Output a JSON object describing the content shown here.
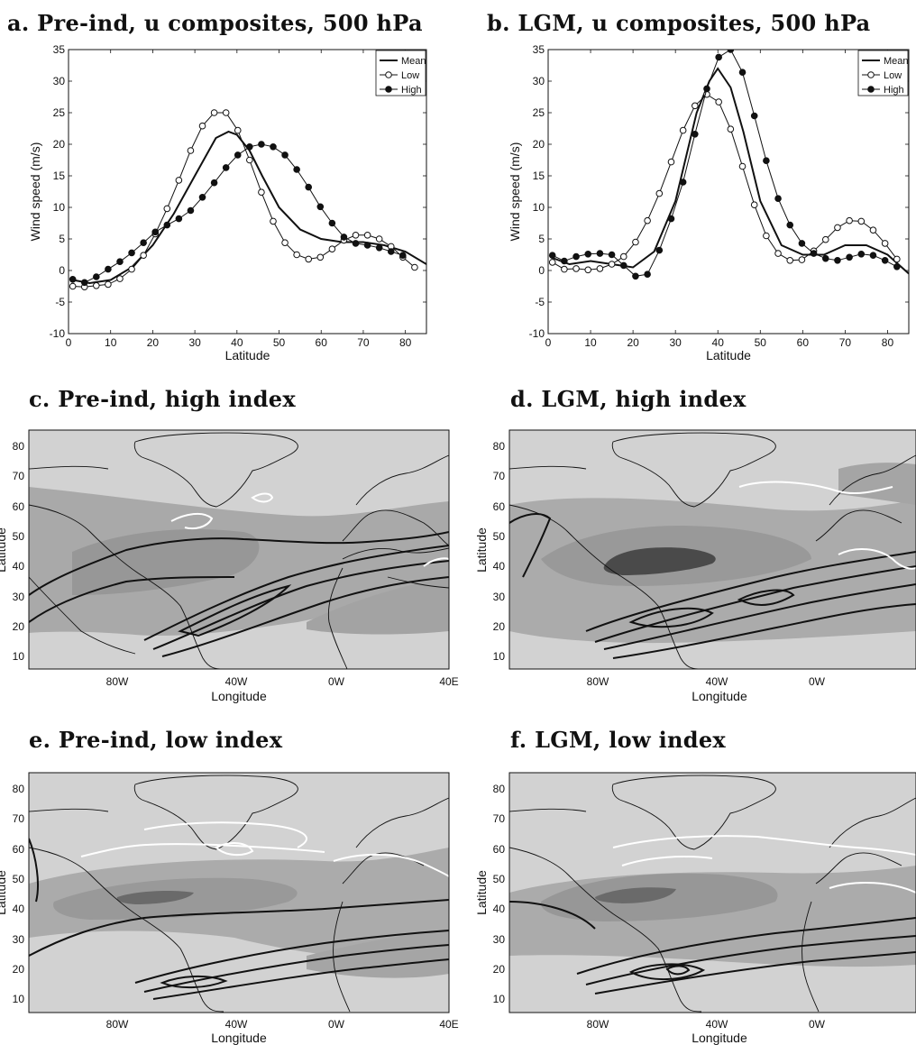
{
  "panels": {
    "a": {
      "title": "a.  Pre-ind, u composites, 500 hPa"
    },
    "b": {
      "title": "b.  LGM, u composites, 500 hPa"
    },
    "c": {
      "title": "c.  Pre-ind, high index"
    },
    "d": {
      "title": "d.  LGM, high index"
    },
    "e": {
      "title": "e.  Pre-ind, low index"
    },
    "f": {
      "title": "f.  LGM, low index"
    }
  },
  "map_axes": {
    "xlabel": "Longitude",
    "ylabel": "Latitude",
    "x_ticks_full": [
      "80W",
      "40W",
      "0W",
      "40E"
    ],
    "x_ticks_cut": [
      "80W",
      "40W",
      "0W"
    ],
    "y_ticks": [
      "80",
      "70",
      "60",
      "50",
      "40",
      "30",
      "20",
      "10"
    ]
  },
  "chart_data": [
    {
      "id": "a",
      "type": "line",
      "title": "a.  Pre-ind, u composites, 500 hPa",
      "xlabel": "Latitude",
      "ylabel": "Wind speed (m/s)",
      "xlim": [
        0,
        85
      ],
      "ylim": [
        -10,
        35
      ],
      "xticks": [
        0,
        10,
        20,
        30,
        40,
        50,
        60,
        70,
        80
      ],
      "yticks": [
        -10,
        -5,
        0,
        5,
        10,
        15,
        20,
        25,
        30,
        35
      ],
      "legend": "top-right",
      "grid": false,
      "series": [
        {
          "name": "Mean",
          "marker": "none",
          "x": [
            1,
            5,
            10,
            15,
            20,
            25,
            30,
            35,
            38,
            40,
            43,
            46,
            50,
            55,
            60,
            65,
            70,
            75,
            80,
            85
          ],
          "y": [
            -1.5,
            -2,
            -1.5,
            0.5,
            4,
            9,
            15,
            21,
            22,
            21.5,
            19,
            15,
            10,
            6.5,
            5,
            4.5,
            4.5,
            4,
            3,
            1
          ]
        },
        {
          "name": "Low",
          "marker": "open-circle",
          "x": [
            1,
            3.8,
            6.6,
            9.4,
            12.2,
            15,
            17.8,
            20.6,
            23.4,
            26.2,
            29,
            31.8,
            34.6,
            37.4,
            40.2,
            43,
            45.8,
            48.6,
            51.4,
            54.2,
            57,
            59.8,
            62.6,
            65.4,
            68.2,
            71,
            73.8,
            76.6,
            79.4,
            82.2
          ],
          "y": [
            -2.5,
            -2.6,
            -2.4,
            -2.2,
            -1.3,
            0.2,
            2.4,
            5.8,
            9.8,
            14.3,
            19,
            22.9,
            25,
            25,
            22.2,
            17.5,
            12.4,
            7.8,
            4.4,
            2.5,
            1.8,
            2.1,
            3.4,
            4.8,
            5.6,
            5.6,
            5,
            3.8,
            2.1,
            0.5
          ]
        },
        {
          "name": "High",
          "marker": "filled-circle",
          "x": [
            1,
            3.8,
            6.6,
            9.4,
            12.2,
            15,
            17.8,
            20.6,
            23.4,
            26.2,
            29,
            31.8,
            34.6,
            37.4,
            40.2,
            43,
            45.8,
            48.6,
            51.4,
            54.2,
            57,
            59.8,
            62.6,
            65.4,
            68.2,
            71,
            73.8,
            76.6,
            79.4
          ],
          "y": [
            -1.4,
            -1.9,
            -1,
            0.2,
            1.4,
            2.8,
            4.4,
            6.1,
            7.2,
            8.2,
            9.5,
            11.6,
            13.9,
            16.3,
            18.3,
            19.6,
            20,
            19.6,
            18.3,
            16,
            13.2,
            10.1,
            7.5,
            5.3,
            4.3,
            4,
            3.6,
            3,
            2.4
          ]
        }
      ]
    },
    {
      "id": "b",
      "type": "line",
      "title": "b.  LGM, u composites, 500 hPa",
      "xlabel": "Latitude",
      "ylabel": "Wind speed (m/s)",
      "xlim": [
        0,
        85
      ],
      "ylim": [
        -10,
        35
      ],
      "xticks": [
        0,
        10,
        20,
        30,
        40,
        50,
        60,
        70,
        80
      ],
      "yticks": [
        -10,
        -5,
        0,
        5,
        10,
        15,
        20,
        25,
        30,
        35
      ],
      "legend": "top-right",
      "grid": false,
      "series": [
        {
          "name": "Mean",
          "marker": "none",
          "x": [
            1,
            5,
            10,
            15,
            20,
            25,
            30,
            35,
            38,
            40,
            43,
            46,
            50,
            55,
            60,
            65,
            70,
            75,
            80,
            85
          ],
          "y": [
            2,
            1,
            1.5,
            1,
            0.5,
            3,
            11,
            25,
            30,
            32,
            29,
            22,
            11,
            4,
            2.5,
            2.5,
            4,
            4,
            2.5,
            -0.5
          ]
        },
        {
          "name": "Low",
          "marker": "open-circle",
          "x": [
            1,
            3.8,
            6.6,
            9.4,
            12.2,
            15,
            17.8,
            20.6,
            23.4,
            26.2,
            29,
            31.8,
            34.6,
            37.4,
            40.2,
            43,
            45.8,
            48.6,
            51.4,
            54.2,
            57,
            59.8,
            62.6,
            65.4,
            68.2,
            71,
            73.8,
            76.6,
            79.4,
            82.2
          ],
          "y": [
            1.3,
            0.2,
            0.3,
            0.1,
            0.3,
            1,
            2.2,
            4.5,
            7.9,
            12.2,
            17.2,
            22.2,
            26.1,
            27.9,
            26.7,
            22.4,
            16.5,
            10.4,
            5.5,
            2.7,
            1.6,
            1.7,
            3.1,
            4.9,
            6.8,
            7.9,
            7.8,
            6.4,
            4.3,
            1.8
          ]
        },
        {
          "name": "High",
          "marker": "filled-circle",
          "x": [
            1,
            3.8,
            6.6,
            9.4,
            12.2,
            15,
            17.8,
            20.6,
            23.4,
            26.2,
            29,
            31.8,
            34.6,
            37.4,
            40.2,
            43,
            45.8,
            48.6,
            51.4,
            54.2,
            57,
            59.8,
            62.6,
            65.4,
            68.2,
            71,
            73.8,
            76.6,
            79.4,
            82.2
          ],
          "y": [
            2.4,
            1.5,
            2.2,
            2.6,
            2.7,
            2.5,
            0.8,
            -0.9,
            -0.6,
            3.2,
            8.2,
            14,
            21.6,
            28.8,
            33.8,
            35,
            31.4,
            24.5,
            17.4,
            11.4,
            7.2,
            4.3,
            2.7,
            1.9,
            1.6,
            2.1,
            2.6,
            2.4,
            1.6,
            0.6
          ]
        }
      ]
    }
  ]
}
